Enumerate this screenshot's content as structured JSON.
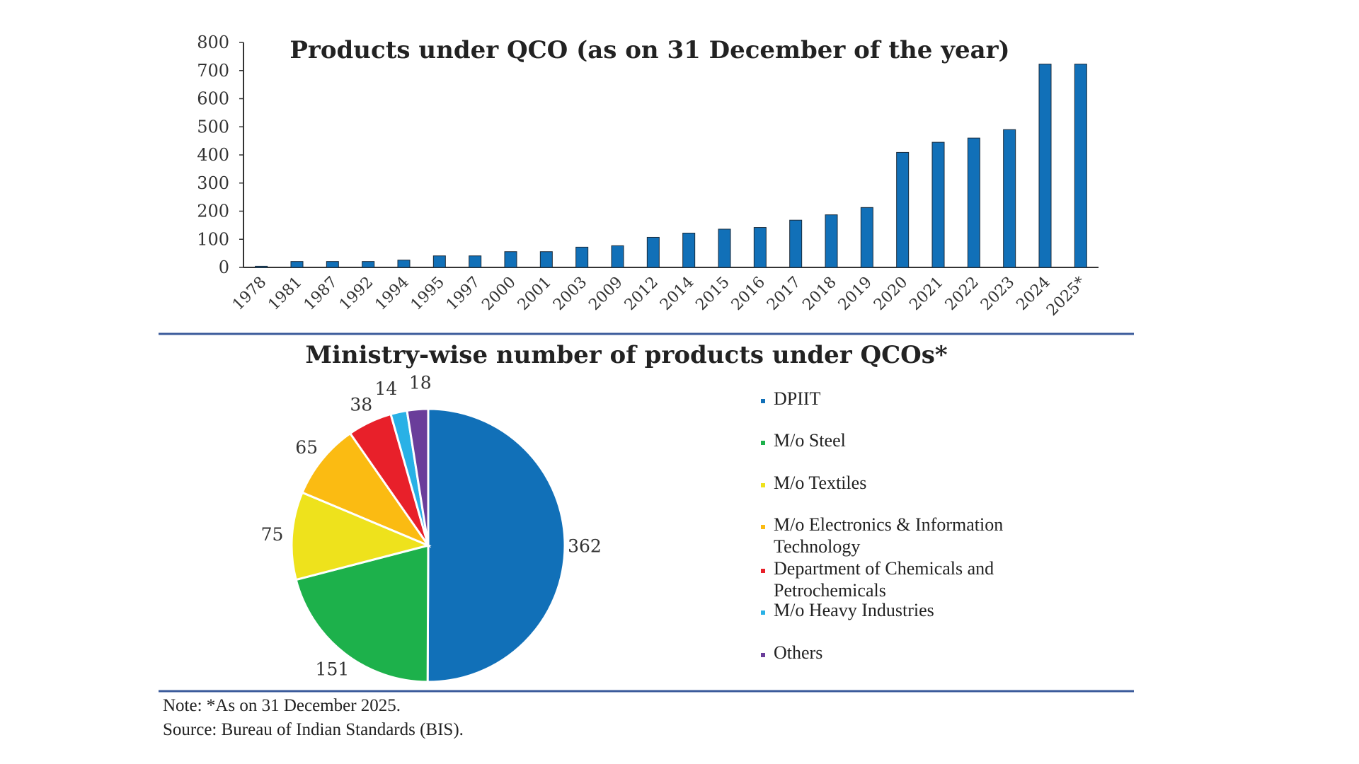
{
  "chart_data": [
    {
      "type": "bar",
      "title": "Products under QCO (as on 31 December of the year)",
      "categories": [
        "1978",
        "1981",
        "1987",
        "1992",
        "1994",
        "1995",
        "1997",
        "2000",
        "2001",
        "2003",
        "2009",
        "2012",
        "2014",
        "2015",
        "2016",
        "2017",
        "2018",
        "2019",
        "2020",
        "2021",
        "2022",
        "2023",
        "2024",
        "2025*"
      ],
      "values": [
        4,
        21,
        21,
        21,
        26,
        41,
        41,
        56,
        56,
        72,
        77,
        107,
        122,
        136,
        142,
        168,
        187,
        213,
        409,
        445,
        460,
        490,
        723,
        723
      ],
      "ylim": [
        0,
        800
      ],
      "yticks": [
        "0",
        "100",
        "200",
        "300",
        "400",
        "500",
        "600",
        "700",
        "800"
      ],
      "grid": false,
      "bar_color": "#1170b8"
    },
    {
      "type": "pie",
      "title": "Ministry-wise number of products under QCOs*",
      "legend_position": "right",
      "slices": [
        {
          "label": "DPIIT",
          "value": 362,
          "value_label": "362",
          "color": "#1170b8"
        },
        {
          "label": "M/o Steel",
          "value": 151,
          "value_label": "151",
          "color": "#1db14b"
        },
        {
          "label": "M/o Textiles",
          "value": 75,
          "value_label": "75",
          "color": "#eee21c"
        },
        {
          "label": "M/o Electronics & Information Technology",
          "value": 65,
          "value_label": "65",
          "color": "#fbbb12"
        },
        {
          "label": "Department of Chemicals and Petrochemicals",
          "value": 38,
          "value_label": "38",
          "color": "#e8202a"
        },
        {
          "label": "M/o Heavy Industries",
          "value": 14,
          "value_label": "14",
          "color": "#29b1e6"
        },
        {
          "label": "Others",
          "value": 18,
          "value_label": "18",
          "color": "#6a3d9a"
        }
      ]
    }
  ],
  "notes": {
    "note": "Note: *As on 31 December 2025.",
    "source": "Source: Bureau of Indian Standards (BIS)."
  },
  "divider_color": "#3a5a9a"
}
